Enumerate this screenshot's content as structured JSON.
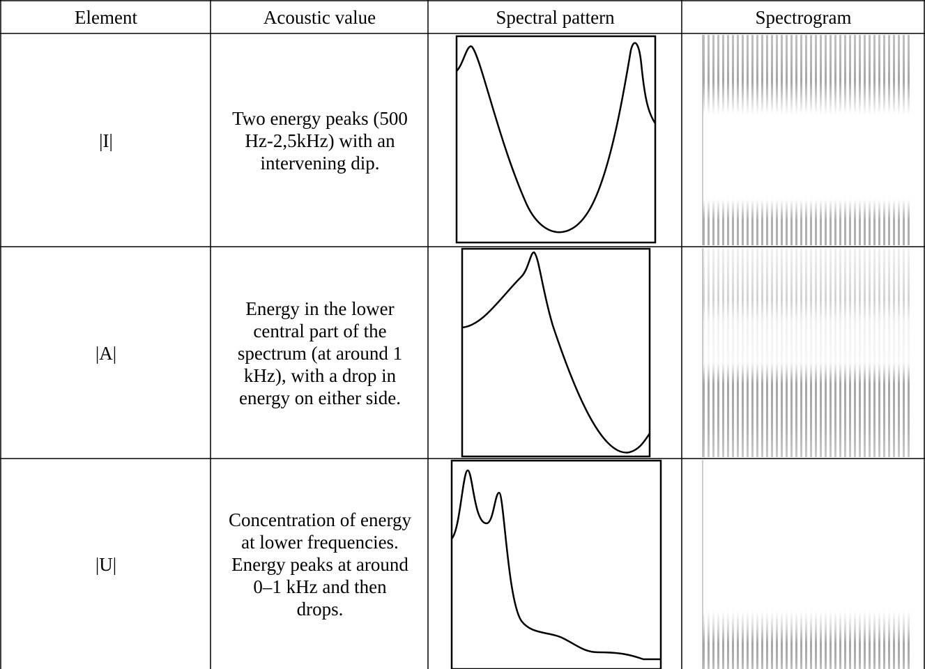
{
  "table": {
    "header": [
      "Element",
      "Acoustic value",
      "Spectral pattern",
      "Spectrogram"
    ],
    "rows": [
      [
        "|I|",
        "Two energy peaks (500 Hz-2,5kHz) with an intervening dip."
      ],
      [
        "|A|",
        "Energy in the lower central part of the spectrum (at around 1 kHz), with a drop in energy on either side."
      ],
      [
        "|U|",
        "Concentration of energy at lower frequencies. Energy peaks at around 0–1 kHz and then drops."
      ]
    ]
  }
}
